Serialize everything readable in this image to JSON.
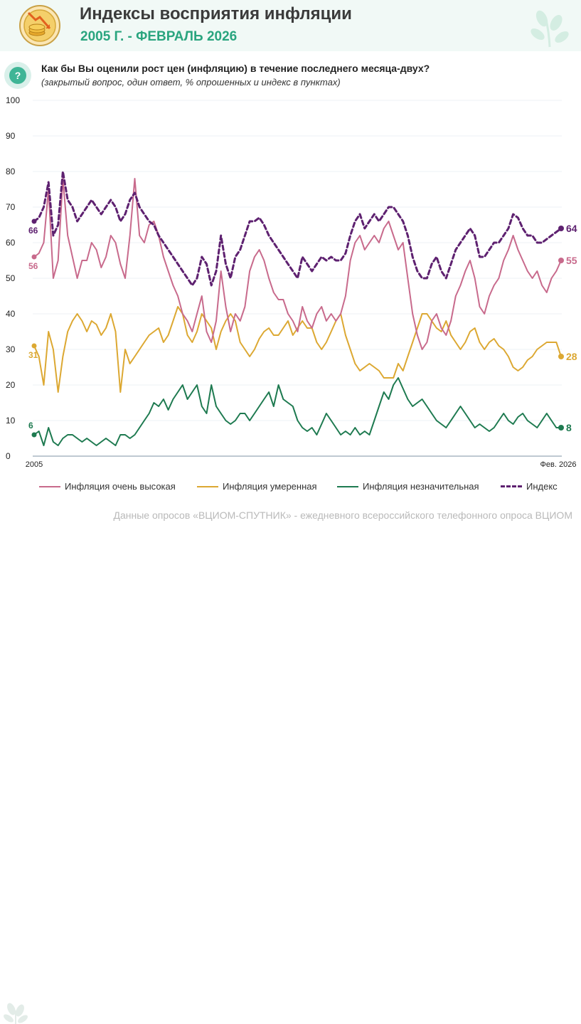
{
  "header": {
    "title": "Индексы восприятия инфляции",
    "subtitle": "2005 Г. - ФЕВРАЛЬ 2026"
  },
  "question": {
    "text": "Как бы Вы оценили рост цен (инфляцию) в течение последнего месяца-двух?",
    "note": "(закрытый вопрос, один ответ, % опрошенных и индекс в пунктах)"
  },
  "colors": {
    "very_high": "#c86a8c",
    "moderate": "#dca832",
    "insignificant": "#1e7a50",
    "index": "#5e2170",
    "accent": "#2aa57f"
  },
  "chart_data": {
    "type": "line",
    "title": "Индексы восприятия инфляции",
    "xlabel": "",
    "ylabel": "",
    "ylim": [
      0,
      100
    ],
    "yticks": [
      0,
      10,
      20,
      30,
      40,
      50,
      60,
      70,
      80,
      90,
      100
    ],
    "x_start_label": "2005",
    "x_end_label": "Фев. 2026",
    "series": [
      {
        "name": "Инфляция очень высокая",
        "key": "very_high",
        "style": "solid",
        "start_label": "56",
        "end_label": "55",
        "values": [
          56,
          57,
          60,
          75,
          50,
          55,
          78,
          62,
          56,
          50,
          55,
          55,
          60,
          58,
          53,
          56,
          62,
          60,
          54,
          50,
          62,
          78,
          62,
          60,
          65,
          66,
          62,
          56,
          52,
          48,
          45,
          40,
          38,
          35,
          40,
          45,
          35,
          32,
          38,
          52,
          42,
          35,
          40,
          38,
          42,
          52,
          56,
          58,
          55,
          50,
          46,
          44,
          44,
          40,
          38,
          35,
          42,
          38,
          36,
          40,
          42,
          38,
          40,
          38,
          40,
          45,
          55,
          60,
          62,
          58,
          60,
          62,
          60,
          64,
          66,
          62,
          58,
          60,
          50,
          40,
          34,
          30,
          32,
          38,
          40,
          36,
          34,
          38,
          45,
          48,
          52,
          55,
          50,
          42,
          40,
          45,
          48,
          50,
          55,
          58,
          62,
          58,
          55,
          52,
          50,
          52,
          48,
          46,
          50,
          52,
          55
        ]
      },
      {
        "name": "Инфляция умеренная",
        "key": "moderate",
        "style": "solid",
        "start_label": "31",
        "end_label": "28",
        "values": [
          31,
          28,
          20,
          35,
          30,
          18,
          28,
          35,
          38,
          40,
          38,
          35,
          38,
          37,
          34,
          36,
          40,
          35,
          18,
          30,
          26,
          28,
          30,
          32,
          34,
          35,
          36,
          32,
          34,
          38,
          42,
          40,
          34,
          32,
          35,
          40,
          38,
          36,
          30,
          35,
          38,
          40,
          38,
          32,
          30,
          28,
          30,
          33,
          35,
          36,
          34,
          34,
          36,
          38,
          34,
          36,
          38,
          36,
          36,
          32,
          30,
          32,
          35,
          38,
          40,
          34,
          30,
          26,
          24,
          25,
          26,
          25,
          24,
          22,
          22,
          22,
          26,
          24,
          28,
          32,
          36,
          40,
          40,
          38,
          36,
          35,
          38,
          34,
          32,
          30,
          32,
          35,
          36,
          32,
          30,
          32,
          33,
          31,
          30,
          28,
          25,
          24,
          25,
          27,
          28,
          30,
          31,
          32,
          32,
          32,
          28
        ]
      },
      {
        "name": "Инфляция незначительная",
        "key": "insignificant",
        "style": "solid",
        "start_label": "6",
        "end_label": "8",
        "values": [
          6,
          7,
          3,
          8,
          4,
          3,
          5,
          6,
          6,
          5,
          4,
          5,
          4,
          3,
          4,
          5,
          4,
          3,
          6,
          6,
          5,
          6,
          8,
          10,
          12,
          15,
          14,
          16,
          13,
          16,
          18,
          20,
          16,
          18,
          20,
          14,
          12,
          20,
          14,
          12,
          10,
          9,
          10,
          12,
          12,
          10,
          12,
          14,
          16,
          18,
          14,
          20,
          16,
          15,
          14,
          10,
          8,
          7,
          8,
          6,
          9,
          12,
          10,
          8,
          6,
          7,
          6,
          8,
          6,
          7,
          6,
          10,
          14,
          18,
          16,
          20,
          22,
          19,
          16,
          14,
          15,
          16,
          14,
          12,
          10,
          9,
          8,
          10,
          12,
          14,
          12,
          10,
          8,
          9,
          8,
          7,
          8,
          10,
          12,
          10,
          9,
          11,
          12,
          10,
          9,
          8,
          10,
          12,
          10,
          8,
          8
        ]
      },
      {
        "name": "Индекс",
        "key": "index",
        "style": "dashed",
        "start_label": "66",
        "end_label": "64",
        "values": [
          66,
          67,
          70,
          77,
          62,
          65,
          80,
          72,
          70,
          66,
          68,
          70,
          72,
          70,
          68,
          70,
          72,
          70,
          66,
          68,
          72,
          74,
          70,
          68,
          66,
          65,
          62,
          60,
          58,
          56,
          54,
          52,
          50,
          48,
          50,
          56,
          54,
          48,
          52,
          62,
          54,
          50,
          56,
          58,
          62,
          66,
          66,
          67,
          65,
          62,
          60,
          58,
          56,
          54,
          52,
          50,
          56,
          54,
          52,
          54,
          56,
          55,
          56,
          55,
          55,
          57,
          62,
          66,
          68,
          64,
          66,
          68,
          66,
          68,
          70,
          70,
          68,
          66,
          62,
          56,
          52,
          50,
          50,
          54,
          56,
          52,
          50,
          54,
          58,
          60,
          62,
          64,
          62,
          56,
          56,
          58,
          60,
          60,
          62,
          64,
          68,
          67,
          64,
          62,
          62,
          60,
          60,
          61,
          62,
          63,
          64
        ]
      }
    ]
  },
  "footer": {
    "source": "Данные опросов «ВЦИОМ-СПУТНИК» - ежедневного всероссийского телефонного опроса ВЦИОМ"
  }
}
